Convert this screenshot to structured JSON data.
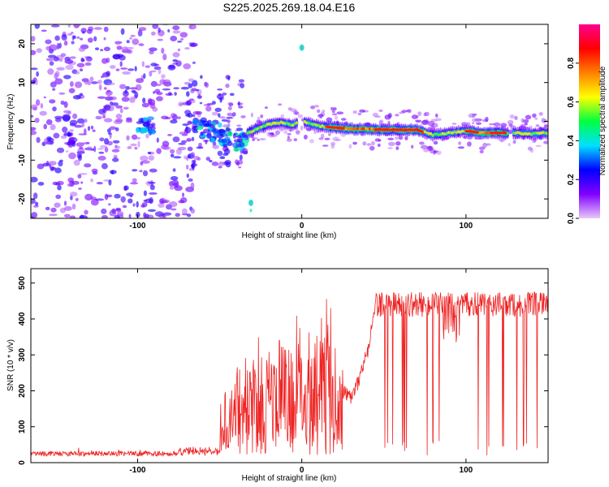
{
  "title": "S225.2025.269.18.04.E16",
  "chart_data": [
    {
      "type": "heatmap",
      "xlabel": "Height of straight line (km)",
      "ylabel": "Frequency (Hz)",
      "xlim": [
        -165,
        150
      ],
      "ylim": [
        -25,
        25
      ],
      "x_ticks": [
        -100,
        0,
        100
      ],
      "y_ticks": [
        -20,
        -10,
        0,
        10,
        20
      ],
      "colorbar": {
        "label": "Normalized spectral amplitude",
        "range": [
          0,
          1
        ],
        "ticks": [
          0.0,
          0.2,
          0.4,
          0.6,
          0.8
        ],
        "tick_labels": [
          "0.0",
          "0.2",
          "0.4",
          "0.6",
          "0.8"
        ],
        "colormap": [
          "#e8c8f8",
          "#8000ff",
          "#0000ff",
          "#00e0ff",
          "#00ff40",
          "#ffff00",
          "#ff8000",
          "#ff0000",
          "#ff0090"
        ]
      },
      "ridge": {
        "x": [
          -33,
          -25,
          -18,
          -12,
          -6,
          0,
          10,
          20,
          30,
          40,
          50,
          60,
          70,
          80,
          90,
          100,
          110,
          120,
          130,
          140,
          150
        ],
        "y": [
          -3,
          -1.5,
          -0.5,
          -0.3,
          -1,
          0,
          -1.2,
          -1.6,
          -2,
          -2,
          -2.2,
          -2.2,
          -2.2,
          -3.5,
          -3,
          -2.5,
          -3,
          -3,
          -3,
          -3.2,
          -3
        ]
      }
    },
    {
      "type": "line",
      "xlabel": "Height of straight line (km)",
      "ylabel": "SNR (10 * v/v)",
      "xlim": [
        -165,
        150
      ],
      "ylim": [
        0,
        540
      ],
      "x_ticks": [
        -100,
        0,
        100
      ],
      "y_ticks": [
        0,
        100,
        200,
        300,
        400,
        500
      ],
      "color": "#ee2222",
      "segments": [
        {
          "x": [
            -165,
            -100,
            -80,
            -60,
            -50
          ],
          "y": [
            18,
            20,
            25,
            30,
            40
          ]
        },
        {
          "x": [
            -50,
            -45,
            -40,
            -35,
            -30
          ],
          "y": [
            60,
            120,
            180,
            200,
            210
          ]
        },
        {
          "x": [
            -30,
            -20,
            -10,
            0,
            10,
            20
          ],
          "y": [
            220,
            240,
            260,
            300,
            320,
            340
          ]
        },
        {
          "x": [
            20,
            25,
            30,
            35,
            40
          ],
          "y": [
            250,
            200,
            180,
            230,
            320
          ]
        },
        {
          "x": [
            40,
            45,
            50,
            55
          ],
          "y": [
            340,
            280,
            200,
            180
          ]
        },
        {
          "x": [
            45,
            60,
            80,
            100,
            120,
            150
          ],
          "y": [
            450,
            455,
            460,
            460,
            455,
            460
          ]
        }
      ]
    }
  ]
}
